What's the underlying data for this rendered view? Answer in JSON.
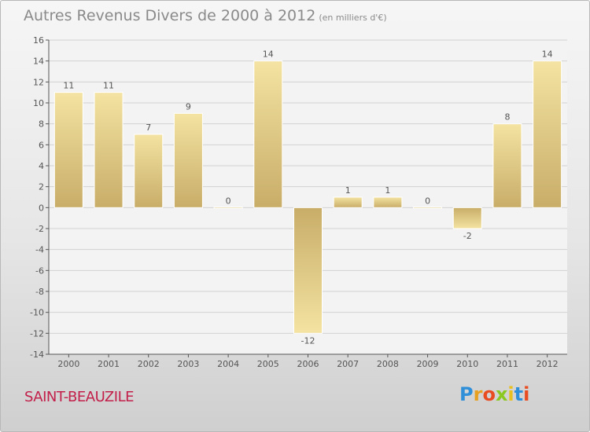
{
  "title": "Autres Revenus Divers de 2000 à 2012",
  "subtitle": "(en milliers d'€)",
  "commune": "SAINT-BEAUZILE",
  "logo": {
    "letters": [
      "P",
      "r",
      "o",
      "x",
      "i",
      "t",
      "i"
    ],
    "colors": [
      "#2f8fd8",
      "#e8a020",
      "#e84c20",
      "#8bc820",
      "#e8c020",
      "#2f8fd8",
      "#e84c20"
    ]
  },
  "colors": {
    "bar_light": "#f4e3a2",
    "bar_dark": "#c8ad68",
    "axis": "#555555",
    "grid": "#d2d2d2"
  },
  "chart_data": {
    "type": "bar",
    "title": "Autres Revenus Divers de 2000 à 2012",
    "categories": [
      "2000",
      "2001",
      "2002",
      "2003",
      "2004",
      "2005",
      "2006",
      "2007",
      "2008",
      "2009",
      "2010",
      "2011",
      "2012"
    ],
    "values": [
      11,
      11,
      7,
      9,
      0,
      14,
      -12,
      1,
      1,
      0,
      -2,
      8,
      14
    ],
    "value_labels": [
      "11",
      "11",
      "7",
      "9",
      "0",
      "14",
      "-12",
      "1",
      "1",
      "0",
      "-2",
      "8",
      "14"
    ],
    "ylim": [
      -14,
      16
    ],
    "yticks": [
      16,
      14,
      12,
      10,
      8,
      6,
      4,
      2,
      0,
      -2,
      -4,
      -6,
      -8,
      -10,
      -12,
      -14
    ],
    "ytick_labels": [
      "16",
      "14",
      "12",
      "10",
      "8",
      "6",
      "4",
      "2",
      "0",
      "-2",
      "-4",
      "-6",
      "-8",
      "-10",
      "-12",
      "-14"
    ],
    "grid": true
  }
}
